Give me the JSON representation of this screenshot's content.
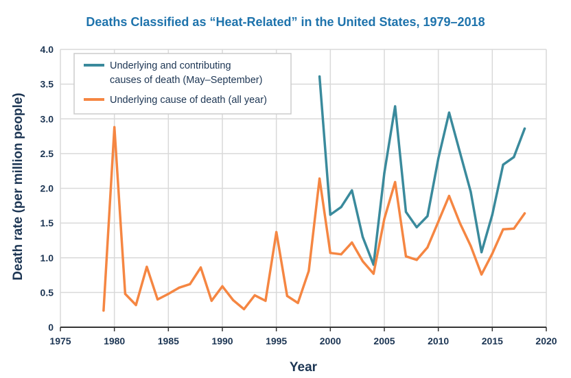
{
  "chart_data": {
    "type": "line",
    "title": "Deaths Classified as “Heat-Related” in the United States, 1979–2018",
    "xlabel": "Year",
    "ylabel": "Death rate (per million people)",
    "xlim": [
      1975,
      2020
    ],
    "ylim": [
      0,
      4.0
    ],
    "x_ticks": [
      "1975",
      "1980",
      "1985",
      "1990",
      "1995",
      "2000",
      "2005",
      "2010",
      "2015",
      "2020"
    ],
    "y_ticks": [
      "0",
      "0.5",
      "1.0",
      "1.5",
      "2.0",
      "2.5",
      "3.0",
      "3.5",
      "4.0"
    ],
    "grid": true,
    "legend_position": "top-left",
    "series": [
      {
        "name": "Underlying and contributing causes of death (May–September)",
        "legend_lines": [
          "Underlying and contributing",
          "causes of death (May–September)"
        ],
        "color": "#3a8a9c",
        "x": [
          1999,
          2000,
          2001,
          2002,
          2003,
          2004,
          2005,
          2006,
          2007,
          2008,
          2009,
          2010,
          2011,
          2012,
          2013,
          2014,
          2015,
          2016,
          2017,
          2018
        ],
        "y": [
          3.61,
          1.62,
          1.73,
          1.97,
          1.3,
          0.9,
          2.22,
          3.18,
          1.66,
          1.44,
          1.6,
          2.43,
          3.09,
          2.52,
          1.95,
          1.08,
          1.62,
          2.34,
          2.45,
          2.86
        ]
      },
      {
        "name": "Underlying cause of death (all year)",
        "legend_lines": [
          "Underlying cause of death (all year)"
        ],
        "color": "#f58642",
        "x": [
          1979,
          1980,
          1981,
          1982,
          1983,
          1984,
          1985,
          1986,
          1987,
          1988,
          1989,
          1990,
          1991,
          1992,
          1993,
          1994,
          1995,
          1996,
          1997,
          1998,
          1999,
          2000,
          2001,
          2002,
          2003,
          2004,
          2005,
          2006,
          2007,
          2008,
          2009,
          2010,
          2011,
          2012,
          2013,
          2014,
          2015,
          2016,
          2017,
          2018
        ],
        "y": [
          0.24,
          2.88,
          0.48,
          0.32,
          0.87,
          0.4,
          0.48,
          0.57,
          0.62,
          0.86,
          0.38,
          0.59,
          0.39,
          0.26,
          0.46,
          0.38,
          1.37,
          0.45,
          0.35,
          0.81,
          2.14,
          1.07,
          1.05,
          1.22,
          0.95,
          0.77,
          1.56,
          2.09,
          1.02,
          0.97,
          1.15,
          1.52,
          1.89,
          1.5,
          1.17,
          0.76,
          1.06,
          1.41,
          1.42,
          1.64
        ]
      }
    ]
  },
  "colors": {
    "title": "#1e73ac",
    "text": "#1c3553",
    "grid": "#d9d9d9",
    "axis": "#333333"
  }
}
